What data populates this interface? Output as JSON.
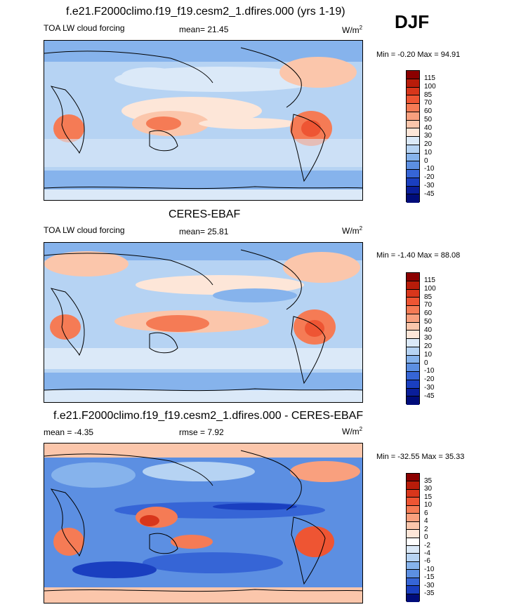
{
  "season": "DJF",
  "panels": [
    {
      "title": "f.e21.F2000climo.f19_f19.cesm2_1.dfires.000 (yrs 1-19)",
      "left_label": "TOA LW cloud forcing",
      "mid_label": "mean=  21.45",
      "units": "W/m",
      "units_sup": "2",
      "minmax": "Min =  -0.20 Max =  94.91",
      "colorbar_levels": [
        "115",
        "100",
        "85",
        "70",
        "60",
        "50",
        "40",
        "30",
        "20",
        "10",
        "0",
        "-10",
        "-20",
        "-30",
        "-45"
      ]
    },
    {
      "title": "CERES-EBAF",
      "left_label": "TOA LW cloud forcing",
      "mid_label": "mean=  25.81",
      "units": "W/m",
      "units_sup": "2",
      "minmax": "Min =  -1.40 Max =  88.08",
      "colorbar_levels": [
        "115",
        "100",
        "85",
        "70",
        "60",
        "50",
        "40",
        "30",
        "20",
        "10",
        "0",
        "-10",
        "-20",
        "-30",
        "-45"
      ]
    },
    {
      "title": "f.e21.F2000climo.f19_f19.cesm2_1.dfires.000 - CERES-EBAF",
      "left_label": "mean =  -4.35",
      "mid_label": "rmse =   7.92",
      "units": "W/m",
      "units_sup": "2",
      "minmax": "Min = -32.55 Max =  35.33",
      "colorbar_levels": [
        "35",
        "30",
        "15",
        "10",
        "6",
        "4",
        "2",
        "0",
        "-2",
        "-4",
        "-6",
        "-10",
        "-15",
        "-30",
        "-35"
      ]
    }
  ],
  "colors": {
    "abs_scale": [
      "#8b0000",
      "#b81c0a",
      "#d8361b",
      "#ee5533",
      "#f57b55",
      "#f9a07e",
      "#fbc6ab",
      "#fde6d8",
      "#dbe9f8",
      "#b6d3f3",
      "#86b3ec",
      "#5c8fe2",
      "#3665d6",
      "#1a3fc0",
      "#0a1e9a",
      "#000c7a"
    ],
    "diff_scale": [
      "#8b0000",
      "#b81c0a",
      "#d8361b",
      "#ee5533",
      "#f57b55",
      "#f9a07e",
      "#fbc6ab",
      "#fde6d8",
      "#ffffff",
      "#dbe9f8",
      "#b6d3f3",
      "#86b3ec",
      "#5c8fe2",
      "#3665d6",
      "#1a3fc0",
      "#000c7a"
    ]
  },
  "chart_data": [
    {
      "type": "heatmap",
      "title": "f.e21.F2000climo.f19_f19.cesm2_1.dfires.000 (yrs 1-19)",
      "variable": "TOA LW cloud forcing",
      "season": "DJF",
      "units": "W/m2",
      "mean": 21.45,
      "min": -0.2,
      "max": 94.91,
      "contour_levels": [
        -45,
        -30,
        -20,
        -10,
        0,
        10,
        20,
        30,
        40,
        50,
        60,
        70,
        85,
        100,
        115
      ]
    },
    {
      "type": "heatmap",
      "title": "CERES-EBAF",
      "variable": "TOA LW cloud forcing",
      "season": "DJF",
      "units": "W/m2",
      "mean": 25.81,
      "min": -1.4,
      "max": 88.08,
      "contour_levels": [
        -45,
        -30,
        -20,
        -10,
        0,
        10,
        20,
        30,
        40,
        50,
        60,
        70,
        85,
        100,
        115
      ]
    },
    {
      "type": "heatmap",
      "title": "f.e21.F2000climo.f19_f19.cesm2_1.dfires.000 - CERES-EBAF",
      "season": "DJF",
      "units": "W/m2",
      "mean": -4.35,
      "rmse": 7.92,
      "min": -32.55,
      "max": 35.33,
      "contour_levels": [
        -35,
        -30,
        -15,
        -10,
        -6,
        -4,
        -2,
        0,
        2,
        4,
        6,
        10,
        15,
        30,
        35
      ]
    }
  ]
}
